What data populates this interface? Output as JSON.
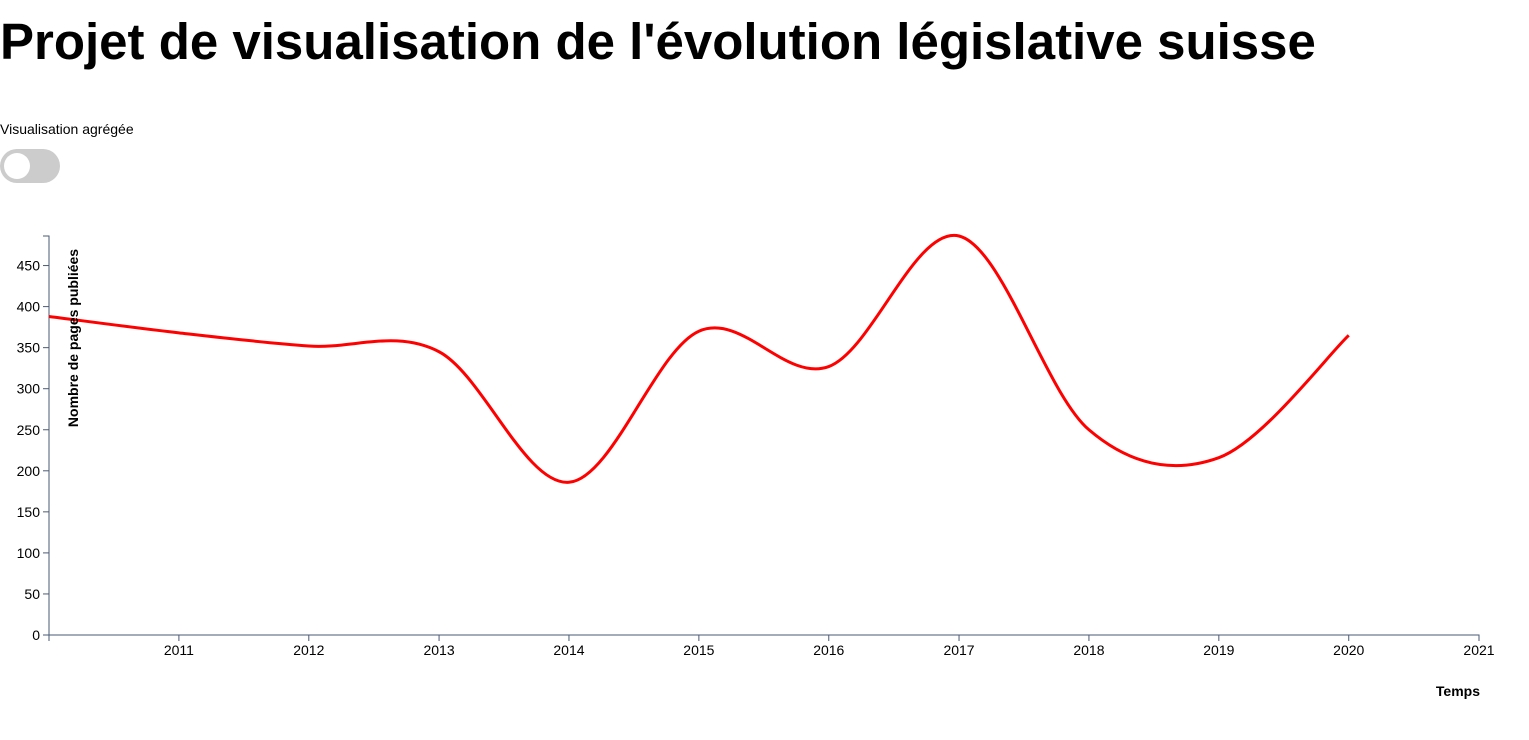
{
  "header": {
    "title": "Projet de visualisation de l'évolution législative suisse"
  },
  "controls": {
    "toggle_label": "Visualisation agrégée",
    "toggle_on": false
  },
  "chart_data": {
    "type": "line",
    "xlabel": "Temps",
    "ylabel": "Nombre de pages publiées",
    "x": [
      "2010-01-01",
      "2011-01-01",
      "2012-01-01",
      "2013-01-01",
      "2014-01-01",
      "2015-01-01",
      "2016-01-01",
      "2017-01-01",
      "2018-01-01",
      "2019-01-01",
      "2020-01-01"
    ],
    "values": [
      388,
      368,
      352,
      345,
      186,
      370,
      327,
      486,
      250,
      216,
      365
    ],
    "x_ticks": [
      "2011",
      "2012",
      "2013",
      "2014",
      "2015",
      "2016",
      "2017",
      "2018",
      "2019",
      "2020",
      "2021"
    ],
    "y_ticks": [
      0,
      50,
      100,
      150,
      200,
      250,
      300,
      350,
      400,
      450
    ],
    "ylim": [
      0,
      486
    ],
    "xlim": [
      "2010-01-01",
      "2021-01-01"
    ],
    "line_color": "#ff0000",
    "axis_color": "#4a5a75",
    "grid": false,
    "curve": "smooth"
  }
}
